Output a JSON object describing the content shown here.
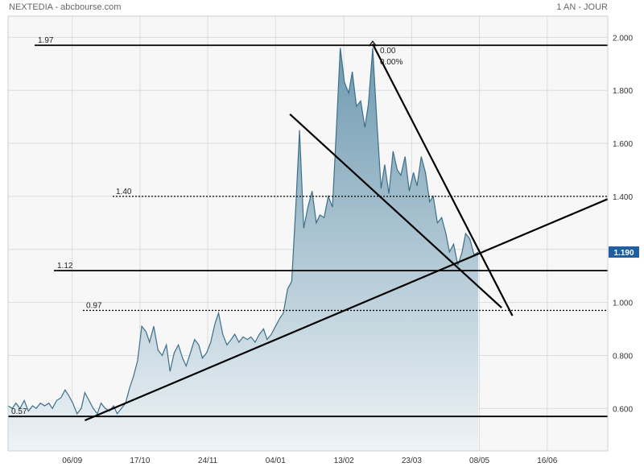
{
  "header": {
    "title": "NEXTEDIA - abcbourse.com",
    "period": "1 AN - JOUR"
  },
  "chart_data": {
    "type": "area",
    "title": "NEXTEDIA - abcbourse.com",
    "ylim": [
      0.44,
      2.08
    ],
    "xlim": [
      0,
      100
    ],
    "grid": true,
    "x_ticks": [
      {
        "label": "06/09",
        "x": 10.7
      },
      {
        "label": "17/10",
        "x": 22.0
      },
      {
        "label": "24/11",
        "x": 33.3
      },
      {
        "label": "04/01",
        "x": 44.6
      },
      {
        "label": "13/02",
        "x": 56.0
      },
      {
        "label": "23/03",
        "x": 67.3
      },
      {
        "label": "08/05",
        "x": 78.6
      },
      {
        "label": "16/06",
        "x": 89.9
      }
    ],
    "y_ticks": [
      {
        "label": "0.600",
        "value": 0.6
      },
      {
        "label": "0.800",
        "value": 0.8
      },
      {
        "label": "1.000",
        "value": 1.0
      },
      {
        "label": "1.200",
        "value": 1.2
      },
      {
        "label": "1.400",
        "value": 1.4
      },
      {
        "label": "1.600",
        "value": 1.6
      },
      {
        "label": "1.800",
        "value": 1.8
      },
      {
        "label": "2.000",
        "value": 2.0
      }
    ],
    "series": [
      {
        "x": [
          0,
          0.7,
          1.3,
          2,
          2.7,
          3.4,
          4.1,
          4.7,
          5.4,
          6.1,
          6.8,
          7.4,
          8.1,
          8.8,
          9.5,
          10.1,
          10.8,
          11.5,
          12.2,
          12.8,
          13.5,
          14.2,
          14.9,
          15.5,
          16.2,
          16.9,
          17.6,
          18.2,
          18.9,
          19.6,
          20.3,
          20.9,
          21.6,
          22.3,
          23,
          23.6,
          24.3,
          25,
          25.7,
          26.4,
          27,
          27.7,
          28.4,
          29.1,
          29.7,
          30.4,
          31.1,
          31.8,
          32.4,
          33.1,
          33.8,
          34.5,
          35.1,
          35.8,
          36.5,
          37.2,
          37.8,
          38.5,
          39.2,
          39.9,
          40.5,
          41.2,
          41.9,
          42.6,
          43.2,
          43.9,
          44.6,
          45.3,
          45.9,
          46.6,
          47.3,
          48,
          48.6,
          49.3,
          50,
          50.7,
          51.4,
          52,
          52.7,
          53.4,
          54.1,
          54.7,
          55.4,
          56.1,
          56.8,
          57.4,
          58.1,
          58.8,
          59.5,
          60.1,
          60.8,
          61.5,
          62.2,
          62.8,
          63.5,
          64.2,
          64.9,
          65.5,
          66.2,
          66.9,
          67.6,
          68.2,
          68.9,
          69.6,
          70.3,
          70.9,
          71.6,
          72.3,
          73,
          73.6,
          74.3,
          75,
          75.7,
          76.3,
          77,
          77.7,
          78.4
        ],
        "values": [
          0.61,
          0.6,
          0.62,
          0.6,
          0.63,
          0.59,
          0.61,
          0.6,
          0.62,
          0.61,
          0.62,
          0.6,
          0.63,
          0.64,
          0.67,
          0.65,
          0.62,
          0.58,
          0.6,
          0.66,
          0.63,
          0.6,
          0.58,
          0.62,
          0.6,
          0.59,
          0.61,
          0.58,
          0.6,
          0.62,
          0.68,
          0.72,
          0.78,
          0.91,
          0.89,
          0.85,
          0.91,
          0.82,
          0.8,
          0.84,
          0.74,
          0.81,
          0.84,
          0.79,
          0.76,
          0.81,
          0.86,
          0.84,
          0.79,
          0.81,
          0.85,
          0.92,
          0.96,
          0.88,
          0.84,
          0.86,
          0.88,
          0.85,
          0.87,
          0.86,
          0.87,
          0.85,
          0.88,
          0.9,
          0.86,
          0.88,
          0.91,
          0.94,
          0.96,
          1.05,
          1.08,
          1.37,
          1.65,
          1.28,
          1.36,
          1.42,
          1.3,
          1.33,
          1.32,
          1.4,
          1.36,
          1.63,
          1.96,
          1.83,
          1.79,
          1.87,
          1.74,
          1.76,
          1.66,
          1.75,
          1.96,
          1.68,
          1.43,
          1.52,
          1.41,
          1.57,
          1.5,
          1.48,
          1.55,
          1.42,
          1.49,
          1.44,
          1.55,
          1.49,
          1.38,
          1.4,
          1.3,
          1.32,
          1.26,
          1.19,
          1.22,
          1.14,
          1.19,
          1.26,
          1.24,
          1.18,
          1.19
        ]
      }
    ],
    "levels": [
      {
        "label": "1.97",
        "value": 1.97,
        "style": "solid"
      },
      {
        "label": "1.40",
        "value": 1.4,
        "style": "dotted"
      },
      {
        "label": "1.12",
        "value": 1.12,
        "style": "solid"
      },
      {
        "label": "0.97",
        "value": 0.97,
        "style": "dotted"
      },
      {
        "label": "0.57",
        "value": 0.57,
        "style": "solid"
      }
    ],
    "annotations": [
      "0.00",
      "0.00%"
    ],
    "last_value": "1.190"
  },
  "colors": {
    "line": "#3d6f89",
    "fill_top": "#6f9ab1",
    "fill_bottom": "#eef3f6",
    "badge": "#1f5f9f",
    "grid": "#dcdcdc",
    "background": "#f7f7f7"
  }
}
